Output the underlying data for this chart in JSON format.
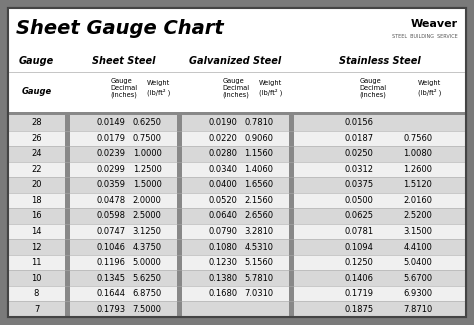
{
  "title": "Sheet Gauge Chart",
  "bg_outer": "#7a7a7a",
  "bg_white": "#ffffff",
  "bg_header": "#ffffff",
  "bg_row_light": "#f0f0f0",
  "bg_row_dark": "#d8d8d8",
  "bg_divider": "#888888",
  "border_dark": "#444444",
  "gauges": [
    28,
    26,
    24,
    22,
    20,
    18,
    16,
    14,
    12,
    11,
    10,
    8,
    7
  ],
  "sheet_steel_decimal": [
    "0.0149",
    "0.0179",
    "0.0239",
    "0.0299",
    "0.0359",
    "0.0478",
    "0.0598",
    "0.0747",
    "0.1046",
    "0.1196",
    "0.1345",
    "0.1644",
    "0.1793"
  ],
  "sheet_steel_weight": [
    "0.6250",
    "0.7500",
    "1.0000",
    "1.2500",
    "1.5000",
    "2.0000",
    "2.5000",
    "3.1250",
    "4.3750",
    "5.0000",
    "5.6250",
    "6.8750",
    "7.5000"
  ],
  "galv_decimal": [
    "0.0190",
    "0.0220",
    "0.0280",
    "0.0340",
    "0.0400",
    "0.0520",
    "0.0640",
    "0.0790",
    "0.1080",
    "0.1230",
    "0.1380",
    "0.1680",
    ""
  ],
  "galv_weight": [
    "0.7810",
    "0.9060",
    "1.1560",
    "1.4060",
    "1.6560",
    "2.1560",
    "2.6560",
    "3.2810",
    "4.5310",
    "5.1560",
    "5.7810",
    "7.0310",
    ""
  ],
  "ss_decimal": [
    "0.0156",
    "0.0187",
    "0.0250",
    "0.0312",
    "0.0375",
    "0.0500",
    "0.0625",
    "0.0781",
    "0.1094",
    "0.1250",
    "0.1406",
    "0.1719",
    "0.1875"
  ],
  "ss_weight": [
    "",
    "0.7560",
    "1.0080",
    "1.2600",
    "1.5120",
    "2.0160",
    "2.5200",
    "3.1500",
    "4.4100",
    "5.0400",
    "5.6700",
    "6.9300",
    "7.8710"
  ]
}
